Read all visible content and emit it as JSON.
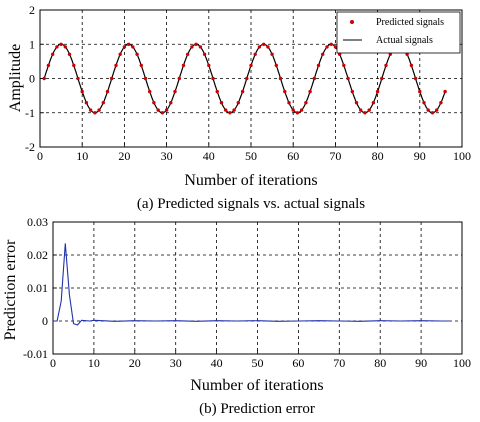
{
  "chart_data": [
    {
      "type": "line",
      "caption": "(a) Predicted signals vs. actual signals",
      "xlabel": "Number of iterations",
      "ylabel": "Amplitude",
      "xlim": [
        0,
        100
      ],
      "ylim": [
        -2,
        2
      ],
      "xticks": [
        "0",
        "10",
        "20",
        "30",
        "40",
        "50",
        "60",
        "70",
        "80",
        "90",
        "100"
      ],
      "yticks": [
        "-2",
        "-1",
        "0",
        "1",
        "2"
      ],
      "grid": true,
      "legend_position": "top-right",
      "legend": [
        "Predicted signals",
        "Actual signals"
      ],
      "signal": {
        "amplitude": 1,
        "period": 16,
        "start": 1,
        "end": 96,
        "step": 1
      },
      "series": [
        {
          "name": "Predicted signals",
          "style": "markers",
          "color": "#cc0000"
        },
        {
          "name": "Actual signals",
          "style": "line",
          "color": "#000000"
        }
      ]
    },
    {
      "type": "line",
      "caption": "(b) Prediction error",
      "xlabel": "Number of iterations",
      "ylabel": "Prediction error",
      "xlim": [
        0,
        100
      ],
      "ylim": [
        -0.01,
        0.03
      ],
      "xticks": [
        "0",
        "10",
        "20",
        "30",
        "40",
        "50",
        "60",
        "70",
        "80",
        "90",
        "100"
      ],
      "yticks": [
        "-0.01",
        "0",
        "0.01",
        "0.02",
        "0.03"
      ],
      "grid": true,
      "series": [
        {
          "name": "",
          "color": "#2233aa",
          "x": [
            0,
            1,
            2,
            3,
            4,
            5,
            6,
            7,
            8,
            9,
            10,
            12,
            15,
            20,
            25,
            30,
            35,
            40,
            45,
            50,
            55,
            60,
            65,
            70,
            75,
            80,
            85,
            90,
            95,
            97
          ],
          "y": [
            0,
            0,
            0.006,
            0.0235,
            0.008,
            -0.0008,
            -0.0012,
            0.0002,
            0.0001,
            0,
            0.0002,
            0.0001,
            -0.0001,
            0.0001,
            0,
            0.0001,
            -0.0001,
            0.0001,
            0,
            0.0001,
            -0.0001,
            0,
            0.0001,
            0,
            -0.0001,
            0.0001,
            0,
            0.0001,
            0,
            0
          ]
        }
      ]
    }
  ]
}
